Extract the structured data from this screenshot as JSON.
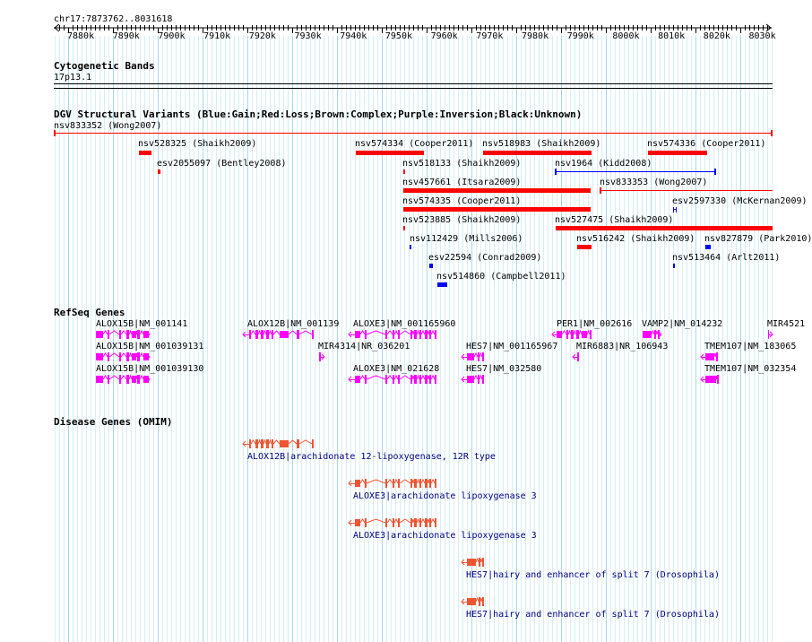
{
  "ruler": {
    "location": "chr17:7873762..8031618",
    "ticks": [
      "7880k",
      "7890k",
      "7900k",
      "7910k",
      "7920k",
      "7930k",
      "7940k",
      "7950k",
      "7960k",
      "7970k",
      "7980k",
      "7990k",
      "8000k",
      "8010k",
      "8020k",
      "8030k"
    ]
  },
  "cytoband": {
    "title": "Cytogenetic Bands",
    "band": "17p13.1"
  },
  "dgv": {
    "title": "DGV Structural Variants (Blue:Gain;Red:Loss;Brown:Complex;Purple:Inversion;Black:Unknown)",
    "variants": [
      {
        "label": "nsv833352 (Wong2007)",
        "color": "#ff0000"
      },
      {
        "label": "nsv528325 (Shaikh2009)",
        "color": "#ff0000"
      },
      {
        "label": "esv2055097 (Bentley2008)",
        "color": "#ff0000"
      },
      {
        "label": "nsv574334 (Cooper2011)",
        "color": "#ff0000"
      },
      {
        "label": "nsv518983 (Shaikh2009)",
        "color": "#ff0000"
      },
      {
        "label": "nsv574336 (Cooper2011)",
        "color": "#ff0000"
      },
      {
        "label": "nsv518133 (Shaikh2009)",
        "color": "#ff0000"
      },
      {
        "label": "nsv1964 (Kidd2008)",
        "color": "#0000ff"
      },
      {
        "label": "nsv457661 (Itsara2009)",
        "color": "#ff0000"
      },
      {
        "label": "nsv833353 (Wong2007)",
        "color": "#ff0000"
      },
      {
        "label": "nsv574335 (Cooper2011)",
        "color": "#ff0000"
      },
      {
        "label": "esv2597330 (McKernan2009)",
        "color": "#0000ff"
      },
      {
        "label": "nsv523885 (Shaikh2009)",
        "color": "#ff0000"
      },
      {
        "label": "nsv527475 (Shaikh2009)",
        "color": "#ff0000"
      },
      {
        "label": "nsv112429 (Mills2006)",
        "color": "#0000ff"
      },
      {
        "label": "nsv516242 (Shaikh2009)",
        "color": "#ff0000"
      },
      {
        "label": "nsv827879 (Park2010)",
        "color": "#0000ff"
      },
      {
        "label": "esv22594 (Conrad2009)",
        "color": "#0000ff"
      },
      {
        "label": "nsv513464 (Arlt2011)",
        "color": "#0000ff"
      },
      {
        "label": "nsv514860 (Campbell2011)",
        "color": "#0000ff"
      }
    ]
  },
  "refseq": {
    "title": "RefSeq Genes",
    "color": "#ff00ff",
    "genes": [
      {
        "label": "ALOX15B|NM_001141"
      },
      {
        "label": "ALOX15B|NM_001039131"
      },
      {
        "label": "ALOX15B|NM_001039130"
      },
      {
        "label": "ALOX12B|NM_001139"
      },
      {
        "label": "MIR4314|NR_036201"
      },
      {
        "label": "ALOXE3|NM_001165960"
      },
      {
        "label": "ALOXE3|NM_021628"
      },
      {
        "label": "HES7|NM_001165967"
      },
      {
        "label": "HES7|NM_032580"
      },
      {
        "label": "PER1|NM_002616"
      },
      {
        "label": "MIR6883|NR_106943"
      },
      {
        "label": "VAMP2|NM_014232"
      },
      {
        "label": "TMEM107|NM_183065"
      },
      {
        "label": "TMEM107|NM_032354"
      },
      {
        "label": "MIR4521"
      }
    ]
  },
  "omim": {
    "title": "Disease Genes (OMIM)",
    "color": "#ee5533",
    "genes": [
      {
        "label": "ALOX12B|arachidonate 12-lipoxygenase, 12R type"
      },
      {
        "label": "ALOXE3|arachidonate lipoxygenase 3"
      },
      {
        "label": "ALOXE3|arachidonate lipoxygenase 3"
      },
      {
        "label": "HES7|hairy and enhancer of split 7 (Drosophila)"
      },
      {
        "label": "HES7|hairy and enhancer of split 7 (Drosophila)"
      }
    ]
  }
}
